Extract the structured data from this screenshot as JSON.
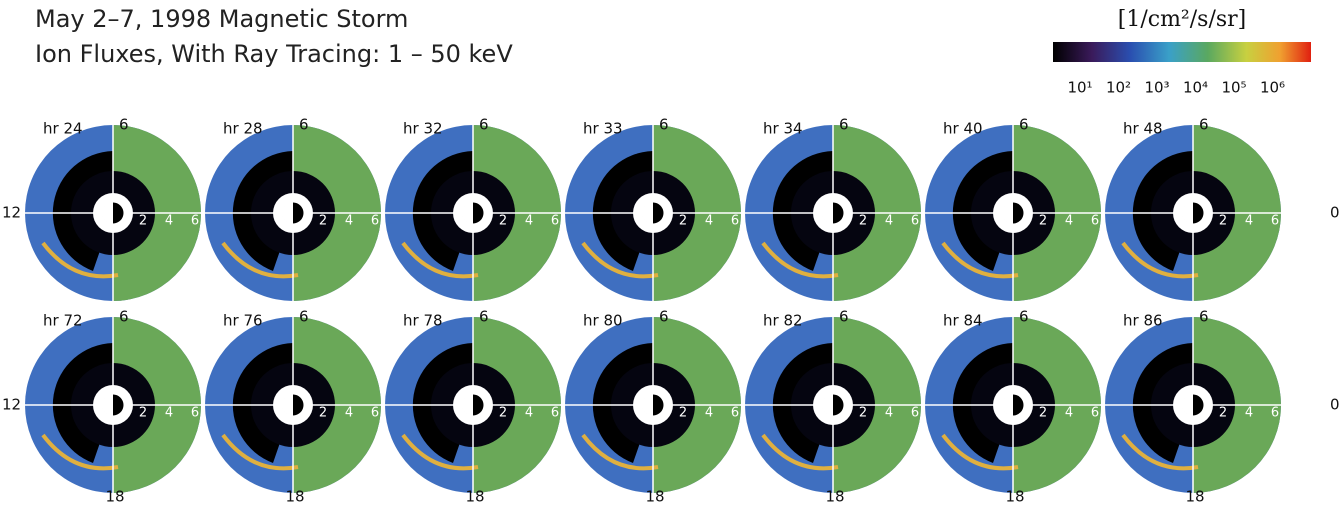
{
  "header": {
    "title_lines": [
      "May 2–7, 1998 Magnetic Storm",
      "Ion Fluxes, With Ray Tracing: 1 – 50 keV"
    ]
  },
  "colorbar": {
    "label": "[1/cm²/s/sr]",
    "ticks": [
      "10¹",
      "10²",
      "10³",
      "10⁴",
      "10⁵",
      "10⁶"
    ]
  },
  "panels": [
    {
      "label": "hr 24"
    },
    {
      "label": "hr 28"
    },
    {
      "label": "hr 32"
    },
    {
      "label": "hr 33"
    },
    {
      "label": "hr 34"
    },
    {
      "label": "hr 40"
    },
    {
      "label": "hr 48"
    },
    {
      "label": "hr 72"
    },
    {
      "label": "hr 76"
    },
    {
      "label": "hr 78"
    },
    {
      "label": "hr 80"
    },
    {
      "label": "hr 82"
    },
    {
      "label": "hr 84"
    },
    {
      "label": "hr 86"
    }
  ],
  "axis_labels": {
    "top": "6",
    "left": "12",
    "bottom": "18",
    "right": "0",
    "radial": [
      "2",
      "4",
      "6"
    ]
  }
}
